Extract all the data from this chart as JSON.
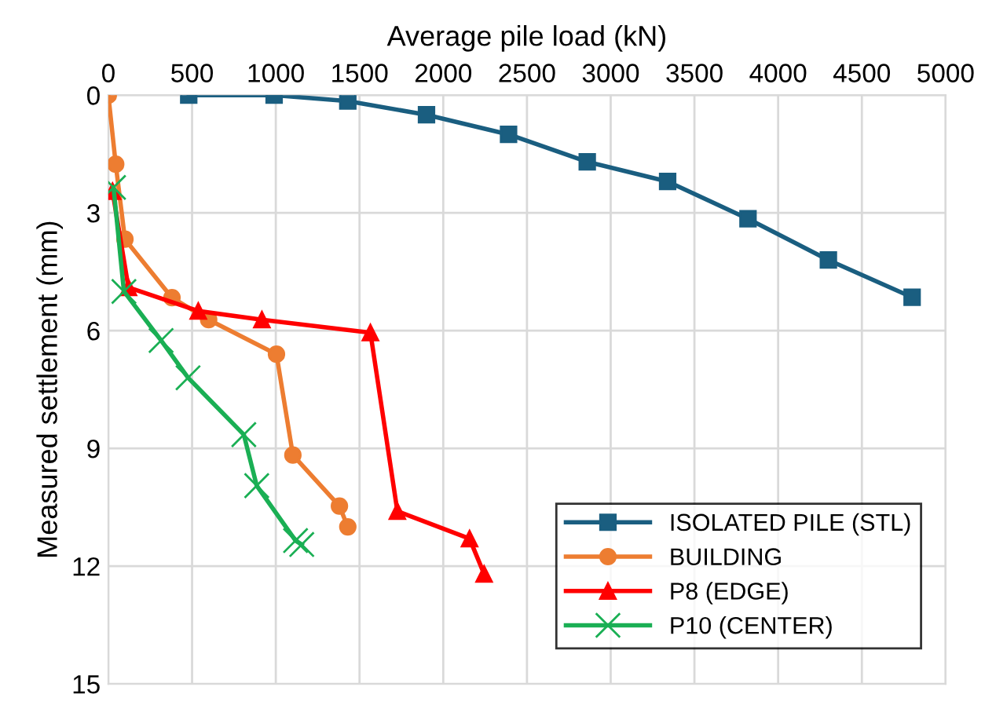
{
  "chart_data": {
    "type": "line",
    "xlabel": "Average pile load (kN)",
    "ylabel": "Measured settlement (mm)",
    "xlim": [
      0,
      5000
    ],
    "xticks": [
      0,
      500,
      1000,
      1500,
      2000,
      2500,
      3000,
      3500,
      4000,
      4500,
      5000
    ],
    "ylim": [
      15,
      0
    ],
    "yticks": [
      0,
      3,
      6,
      9,
      12,
      15
    ],
    "grid": true,
    "legend": "bottom right",
    "series": [
      {
        "name": "ISOLATED PILE (STL)",
        "color": "#1a5e80",
        "marker": "square",
        "x": [
          480,
          990,
          1430,
          1900,
          2390,
          2860,
          3340,
          3820,
          4300,
          4800
        ],
        "values": [
          0,
          0.0,
          0.15,
          0.5,
          1.0,
          1.7,
          2.2,
          3.15,
          4.2,
          5.15
        ]
      },
      {
        "name": "BUILDING",
        "color": "#ed7d31",
        "marker": "circle",
        "x": [
          0,
          44,
          99,
          380,
          599,
          1004,
          1102,
          1380,
          1430
        ],
        "values": [
          0,
          1.76,
          3.67,
          5.16,
          5.72,
          6.6,
          9.17,
          10.47,
          11.0
        ]
      },
      {
        "name": "P8 (EDGE)",
        "color": "#ff0000",
        "marker": "triangle",
        "x": [
          25,
          120,
          537,
          917,
          1565,
          1726,
          2157,
          2244
        ],
        "values": [
          2.45,
          4.9,
          5.5,
          5.72,
          6.05,
          10.6,
          11.3,
          12.2
        ]
      },
      {
        "name": "P10 (CENTER)",
        "color": "#1aaf54",
        "marker": "cross",
        "x": [
          31,
          93,
          315,
          476,
          809,
          886,
          1118,
          1155
        ],
        "values": [
          2.35,
          5.0,
          6.25,
          7.2,
          8.65,
          9.95,
          11.35,
          11.45
        ]
      }
    ]
  }
}
